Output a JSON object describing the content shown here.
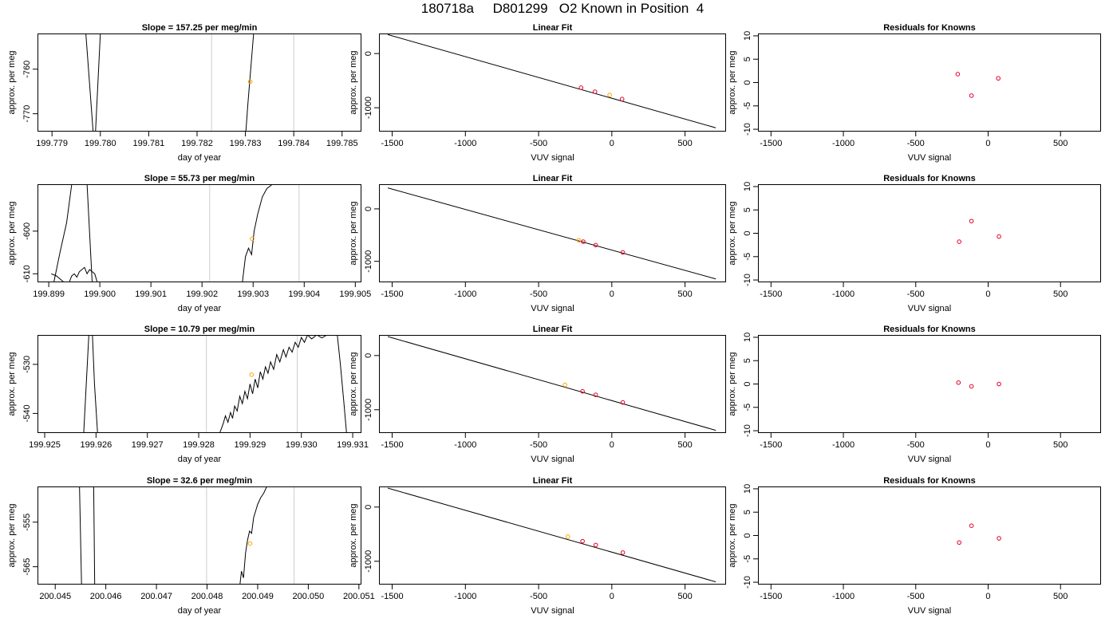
{
  "figure": {
    "title": "180718a     D801299   O2 Known in Position  4"
  },
  "colors": {
    "known_point": "#e4002b",
    "sample_point": "#ffa500",
    "interval_line": "#cccccc",
    "trace": "#000000"
  },
  "chart_data": [
    {
      "type": "line",
      "title": "Slope =  157.25  per meg/min",
      "xlabel": "day of year",
      "ylabel": "approx. per meg",
      "xlim": [
        199.7787,
        199.7854
      ],
      "ylim": [
        -774,
        -752
      ],
      "xticks": [
        199.779,
        199.78,
        199.781,
        199.782,
        199.783,
        199.784,
        199.785
      ],
      "xtick_labels": [
        "199.779",
        "199.780",
        "199.781",
        "199.782",
        "199.783",
        "199.784",
        "199.785"
      ],
      "yticks": [
        -760,
        -770
      ],
      "ytick_labels": [
        "-760",
        "-770"
      ],
      "vlines": [
        199.7823,
        199.784
      ],
      "segments": [
        [
          [
            199.7797,
            -752
          ],
          [
            199.77985,
            -774
          ]
        ],
        [
          [
            199.7799,
            -774
          ],
          [
            199.78,
            -752
          ]
        ],
        [
          [
            199.78301,
            -774
          ],
          [
            199.78305,
            -768
          ],
          [
            199.78311,
            -760
          ],
          [
            199.78317,
            -752
          ]
        ]
      ],
      "points": [
        {
          "x": 199.7831,
          "y": -762.8
        }
      ]
    },
    {
      "type": "scatter",
      "title": "Linear Fit",
      "xlabel": "VUV signal",
      "ylabel": "approx. per meg",
      "xlim": [
        -1590,
        780
      ],
      "ylim": [
        -1440,
        370
      ],
      "xticks": [
        -1500,
        -1000,
        -500,
        0,
        500
      ],
      "xtick_labels": [
        "-1500",
        "-1000",
        "-500",
        "0",
        "500"
      ],
      "yticks": [
        0,
        -1000
      ],
      "ytick_labels": [
        "0",
        "-1000"
      ],
      "fit_line": [
        [
          -1530,
          350
        ],
        [
          710,
          -1370
        ]
      ],
      "known_points": [
        {
          "x": -210,
          "y": -630
        },
        {
          "x": -115,
          "y": -705
        },
        {
          "x": 70,
          "y": -840
        }
      ],
      "sample_points": [
        {
          "x": -15,
          "y": -765
        }
      ]
    },
    {
      "type": "scatter",
      "title": "Residuals for Knowns",
      "xlabel": "VUV signal",
      "ylabel": "approx. per meg",
      "xlim": [
        -1590,
        780
      ],
      "ylim": [
        -10.5,
        10.5
      ],
      "xticks": [
        -1500,
        -1000,
        -500,
        0,
        500
      ],
      "xtick_labels": [
        "-1500",
        "-1000",
        "-500",
        "0",
        "500"
      ],
      "yticks": [
        10,
        5,
        0,
        -5,
        -10
      ],
      "ytick_labels": [
        "10",
        "5",
        "0",
        "-5",
        "-10"
      ],
      "known_points": [
        {
          "x": -210,
          "y": 1.8
        },
        {
          "x": -115,
          "y": -2.8
        },
        {
          "x": 70,
          "y": 0.9
        }
      ]
    },
    {
      "type": "line",
      "title": "Slope =  55.73  per meg/min",
      "xlabel": "day of year",
      "ylabel": "approx. per meg",
      "xlim": [
        199.89878,
        199.90512
      ],
      "ylim": [
        -612,
        -589
      ],
      "xticks": [
        199.899,
        199.9,
        199.901,
        199.902,
        199.903,
        199.904,
        199.905
      ],
      "xtick_labels": [
        "199.899",
        "199.900",
        "199.901",
        "199.902",
        "199.903",
        "199.904",
        "199.905"
      ],
      "yticks": [
        -600,
        -610
      ],
      "ytick_labels": [
        "-600",
        "-610"
      ],
      "vlines": [
        199.90215,
        199.9039
      ],
      "segments": [
        [
          [
            199.89905,
            -610
          ],
          [
            199.89915,
            -610.5
          ],
          [
            199.8992,
            -611
          ],
          [
            199.8993,
            -612
          ]
        ],
        [
          [
            199.8994,
            -612
          ],
          [
            199.89945,
            -610.5
          ],
          [
            199.8995,
            -610
          ],
          [
            199.89955,
            -610.8
          ],
          [
            199.8996,
            -609.5
          ],
          [
            199.8997,
            -608.5
          ],
          [
            199.89975,
            -610
          ],
          [
            199.8998,
            -609
          ],
          [
            199.8999,
            -610
          ],
          [
            199.89995,
            -612
          ]
        ],
        [
          [
            199.8991,
            -612
          ],
          [
            199.89922,
            -605
          ],
          [
            199.89935,
            -598
          ],
          [
            199.89945,
            -589
          ]
        ],
        [
          [
            199.89975,
            -589
          ],
          [
            199.89985,
            -612
          ]
        ],
        [
          [
            199.90279,
            -612
          ],
          [
            199.90285,
            -606
          ],
          [
            199.90291,
            -604
          ],
          [
            199.90297,
            -605.5
          ],
          [
            199.90302,
            -600
          ],
          [
            199.90309,
            -596
          ],
          [
            199.90318,
            -592
          ],
          [
            199.90327,
            -590
          ],
          [
            199.90338,
            -589
          ]
        ]
      ],
      "points": [
        {
          "x": 199.90298,
          "y": -601.8
        }
      ]
    },
    {
      "type": "scatter",
      "title": "Linear Fit",
      "xlabel": "VUV signal",
      "ylabel": "approx. per meg",
      "xlim": [
        -1590,
        780
      ],
      "ylim": [
        -1400,
        470
      ],
      "xticks": [
        -1500,
        -1000,
        -500,
        0,
        500
      ],
      "xtick_labels": [
        "-1500",
        "-1000",
        "-500",
        "0",
        "500"
      ],
      "yticks": [
        0,
        -1000
      ],
      "ytick_labels": [
        "0",
        "-1000"
      ],
      "fit_line": [
        [
          -1530,
          400
        ],
        [
          710,
          -1335
        ]
      ],
      "known_points": [
        {
          "x": -195,
          "y": -625
        },
        {
          "x": -110,
          "y": -690
        },
        {
          "x": 75,
          "y": -830
        }
      ],
      "sample_points": [
        {
          "x": -225,
          "y": -600
        }
      ]
    },
    {
      "type": "scatter",
      "title": "Residuals for Knowns",
      "xlabel": "VUV signal",
      "ylabel": "approx. per meg",
      "xlim": [
        -1590,
        780
      ],
      "ylim": [
        -10.5,
        10.5
      ],
      "xticks": [
        -1500,
        -1000,
        -500,
        0,
        500
      ],
      "xtick_labels": [
        "-1500",
        "-1000",
        "-500",
        "0",
        "500"
      ],
      "yticks": [
        10,
        5,
        0,
        -5,
        -10
      ],
      "ytick_labels": [
        "10",
        "5",
        "0",
        "-5",
        "-10"
      ],
      "known_points": [
        {
          "x": -200,
          "y": -1.8
        },
        {
          "x": -115,
          "y": 2.6
        },
        {
          "x": 75,
          "y": -0.7
        }
      ]
    },
    {
      "type": "line",
      "title": "Slope =  10.79  per meg/min",
      "xlabel": "day of year",
      "ylabel": "approx. per meg",
      "xlim": [
        199.92486,
        199.93117
      ],
      "ylim": [
        -544,
        -524
      ],
      "xticks": [
        199.925,
        199.926,
        199.927,
        199.928,
        199.929,
        199.93,
        199.931
      ],
      "xtick_labels": [
        "199.925",
        "199.926",
        "199.927",
        "199.928",
        "199.929",
        "199.930",
        "199.931"
      ],
      "yticks": [
        -530,
        -540
      ],
      "ytick_labels": [
        "-530",
        "-540"
      ],
      "vlines": [
        199.92815,
        199.92992
      ],
      "segments": [
        [
          [
            199.92576,
            -544
          ],
          [
            199.9258,
            -536
          ],
          [
            199.92586,
            -524
          ]
        ],
        [
          [
            199.92593,
            -524
          ],
          [
            199.92597,
            -534
          ],
          [
            199.92603,
            -544
          ]
        ],
        [
          [
            199.92841,
            -544
          ],
          [
            199.92848,
            -542
          ],
          [
            199.92852,
            -540.5
          ],
          [
            199.92857,
            -541.8
          ],
          [
            199.92862,
            -539.8
          ],
          [
            199.92866,
            -541
          ],
          [
            199.9287,
            -538.5
          ],
          [
            199.92875,
            -539.5
          ],
          [
            199.9288,
            -536.5
          ],
          [
            199.92885,
            -538
          ],
          [
            199.9289,
            -535.5
          ],
          [
            199.92895,
            -537
          ],
          [
            199.929,
            -534
          ],
          [
            199.92905,
            -536
          ],
          [
            199.9291,
            -533
          ],
          [
            199.92915,
            -534.8
          ],
          [
            199.9292,
            -531.5
          ],
          [
            199.92925,
            -533
          ],
          [
            199.9293,
            -530.5
          ],
          [
            199.92935,
            -531.8
          ],
          [
            199.9294,
            -529.5
          ],
          [
            199.92946,
            -531
          ],
          [
            199.92952,
            -528
          ],
          [
            199.92958,
            -529.5
          ],
          [
            199.92965,
            -527
          ],
          [
            199.9297,
            -528.5
          ],
          [
            199.92976,
            -526.5
          ],
          [
            199.92982,
            -527.5
          ],
          [
            199.92988,
            -525.5
          ],
          [
            199.92994,
            -526.5
          ],
          [
            199.93,
            -524.5
          ],
          [
            199.93006,
            -525.5
          ],
          [
            199.93012,
            -524
          ],
          [
            199.9302,
            -524.8
          ],
          [
            199.9303,
            -524
          ],
          [
            199.9304,
            -524.6
          ],
          [
            199.9305,
            -524
          ]
        ],
        [
          [
            199.9307,
            -524
          ],
          [
            199.93076,
            -530
          ],
          [
            199.93083,
            -538
          ],
          [
            199.93088,
            -544
          ]
        ]
      ],
      "points": [
        {
          "x": 199.92903,
          "y": -532.1
        }
      ]
    },
    {
      "type": "scatter",
      "title": "Linear Fit",
      "xlabel": "VUV signal",
      "ylabel": "approx. per meg",
      "xlim": [
        -1590,
        780
      ],
      "ylim": [
        -1430,
        380
      ],
      "xticks": [
        -1500,
        -1000,
        -500,
        0,
        500
      ],
      "xtick_labels": [
        "-1500",
        "-1000",
        "-500",
        "0",
        "500"
      ],
      "yticks": [
        0,
        -1000
      ],
      "ytick_labels": [
        "0",
        "-1000"
      ],
      "fit_line": [
        [
          -1530,
          350
        ],
        [
          710,
          -1380
        ]
      ],
      "known_points": [
        {
          "x": -200,
          "y": -660
        },
        {
          "x": -110,
          "y": -725
        },
        {
          "x": 75,
          "y": -865
        }
      ],
      "sample_points": [
        {
          "x": -320,
          "y": -540
        }
      ]
    },
    {
      "type": "scatter",
      "title": "Residuals for Knowns",
      "xlabel": "VUV signal",
      "ylabel": "approx. per meg",
      "xlim": [
        -1590,
        780
      ],
      "ylim": [
        -10.5,
        10.5
      ],
      "xticks": [
        -1500,
        -1000,
        -500,
        0,
        500
      ],
      "xtick_labels": [
        "-1500",
        "-1000",
        "-500",
        "0",
        "500"
      ],
      "yticks": [
        10,
        5,
        0,
        -5,
        -10
      ],
      "ytick_labels": [
        "10",
        "5",
        "0",
        "-5",
        "-10"
      ],
      "known_points": [
        {
          "x": -205,
          "y": 0.3
        },
        {
          "x": -115,
          "y": -0.5
        },
        {
          "x": 75,
          "y": 0.0
        }
      ]
    },
    {
      "type": "line",
      "title": "Slope =  32.6  per meg/min",
      "xlabel": "day of year",
      "ylabel": "approx. per meg",
      "xlim": [
        200.04465,
        200.05105
      ],
      "ylim": [
        -569,
        -547
      ],
      "xticks": [
        200.045,
        200.046,
        200.047,
        200.048,
        200.049,
        200.05,
        200.051
      ],
      "xtick_labels": [
        "200.045",
        "200.046",
        "200.047",
        "200.048",
        "200.049",
        "200.050",
        "200.051"
      ],
      "yticks": [
        -555,
        -565
      ],
      "ytick_labels": [
        "-555",
        "-565"
      ],
      "vlines": [
        200.04799,
        200.04972
      ],
      "segments": [
        [
          [
            200.04548,
            -547
          ],
          [
            200.04552,
            -569
          ]
        ],
        [
          [
            200.04576,
            -547
          ],
          [
            200.04578,
            -569
          ]
        ],
        [
          [
            200.04865,
            -569
          ],
          [
            200.04868,
            -566
          ],
          [
            200.04872,
            -567.5
          ],
          [
            200.04876,
            -562
          ],
          [
            200.0488,
            -559
          ],
          [
            200.04884,
            -557
          ],
          [
            200.04888,
            -557.5
          ],
          [
            200.04892,
            -554
          ],
          [
            200.04896,
            -552.5
          ],
          [
            200.049,
            -551
          ],
          [
            200.04906,
            -549.5
          ],
          [
            200.04912,
            -548.5
          ],
          [
            200.04918,
            -547
          ]
        ]
      ],
      "points": [
        {
          "x": 200.04885,
          "y": -559.8
        }
      ]
    },
    {
      "type": "scatter",
      "title": "Linear Fit",
      "xlabel": "VUV signal",
      "ylabel": "approx. per meg",
      "xlim": [
        -1590,
        780
      ],
      "ylim": [
        -1430,
        380
      ],
      "xticks": [
        -1500,
        -1000,
        -500,
        0,
        500
      ],
      "xtick_labels": [
        "-1500",
        "-1000",
        "-500",
        "0",
        "500"
      ],
      "yticks": [
        0,
        -1000
      ],
      "ytick_labels": [
        "0",
        "-1000"
      ],
      "fit_line": [
        [
          -1530,
          350
        ],
        [
          710,
          -1380
        ]
      ],
      "known_points": [
        {
          "x": -200,
          "y": -630
        },
        {
          "x": -110,
          "y": -700
        },
        {
          "x": 75,
          "y": -840
        }
      ],
      "sample_points": [
        {
          "x": -300,
          "y": -545
        }
      ]
    },
    {
      "type": "scatter",
      "title": "Residuals for Knowns",
      "xlabel": "VUV signal",
      "ylabel": "approx. per meg",
      "xlim": [
        -1590,
        780
      ],
      "ylim": [
        -10.5,
        10.5
      ],
      "xticks": [
        -1500,
        -1000,
        -500,
        0,
        500
      ],
      "xtick_labels": [
        "-1500",
        "-1000",
        "-500",
        "0",
        "500"
      ],
      "yticks": [
        10,
        5,
        0,
        -5,
        -10
      ],
      "ytick_labels": [
        "10",
        "5",
        "0",
        "-5",
        "-10"
      ],
      "known_points": [
        {
          "x": -200,
          "y": -1.5
        },
        {
          "x": -115,
          "y": 2.1
        },
        {
          "x": 75,
          "y": -0.6
        }
      ]
    }
  ]
}
